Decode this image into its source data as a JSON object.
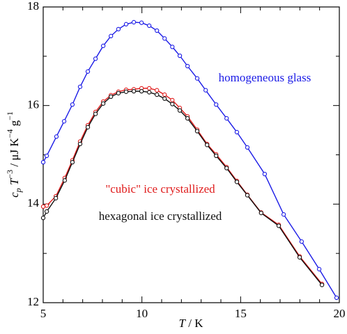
{
  "chart_data": {
    "type": "line",
    "x_label": [
      "T",
      " / K"
    ],
    "y_label": [
      "c",
      "p",
      " T",
      "−3",
      " / μJ K",
      "−4",
      " g",
      "−1"
    ],
    "xlim": [
      5,
      20
    ],
    "ylim": [
      12,
      18
    ],
    "xticks": [
      5,
      10,
      15,
      20
    ],
    "yticks": [
      12,
      14,
      16,
      18
    ],
    "xminor_ticks": [
      6,
      7,
      8,
      9,
      11,
      12,
      13,
      14,
      16,
      17,
      18,
      19
    ],
    "yminor_ticks": [
      13,
      15,
      17
    ],
    "series": [
      {
        "name": "homogeneous glass",
        "color": "#1a1ae6",
        "x": [
          5.0,
          5.18,
          5.67,
          6.06,
          6.48,
          6.87,
          7.26,
          7.65,
          8.04,
          8.43,
          8.81,
          9.2,
          9.59,
          9.98,
          10.37,
          10.76,
          11.15,
          11.54,
          11.92,
          12.31,
          12.8,
          13.23,
          13.76,
          14.29,
          14.81,
          15.34,
          16.22,
          17.18,
          18.09,
          18.98,
          19.86
        ],
        "values": [
          14.85,
          14.98,
          15.37,
          15.68,
          16.02,
          16.38,
          16.69,
          16.95,
          17.21,
          17.41,
          17.55,
          17.65,
          17.69,
          17.68,
          17.62,
          17.52,
          17.36,
          17.19,
          17.01,
          16.8,
          16.55,
          16.31,
          16.02,
          15.74,
          15.46,
          15.15,
          14.61,
          13.79,
          13.24,
          12.68,
          12.1
        ]
      },
      {
        "name": "\"cubic\" ice crystallized",
        "color": "#e01c1c",
        "x": [
          5.0,
          5.18,
          5.64,
          6.09,
          6.48,
          6.87,
          7.26,
          7.65,
          8.04,
          8.43,
          8.81,
          9.2,
          9.59,
          9.98,
          10.37,
          10.76,
          11.15,
          11.54,
          11.92,
          12.31,
          12.8,
          13.3,
          13.76,
          14.29,
          14.81,
          15.34,
          16.04,
          16.93,
          17.99,
          19.12
        ],
        "values": [
          13.95,
          13.97,
          14.16,
          14.53,
          14.89,
          15.27,
          15.6,
          15.87,
          16.08,
          16.21,
          16.28,
          16.32,
          16.33,
          16.35,
          16.35,
          16.31,
          16.22,
          16.11,
          15.95,
          15.78,
          15.51,
          15.22,
          15.01,
          14.75,
          14.47,
          14.19,
          13.83,
          13.58,
          12.94,
          12.38
        ]
      },
      {
        "name": "hexagonal ice crystallized",
        "color": "#111111",
        "x": [
          5.0,
          5.18,
          5.64,
          6.09,
          6.48,
          6.87,
          7.26,
          7.65,
          8.04,
          8.43,
          8.81,
          9.2,
          9.59,
          9.98,
          10.37,
          10.76,
          11.15,
          11.54,
          11.92,
          12.31,
          12.8,
          13.3,
          13.76,
          14.29,
          14.81,
          15.34,
          16.04,
          16.93,
          17.99,
          19.12
        ],
        "values": [
          13.72,
          13.85,
          14.12,
          14.48,
          14.85,
          15.22,
          15.56,
          15.83,
          16.04,
          16.18,
          16.25,
          16.28,
          16.29,
          16.29,
          16.27,
          16.22,
          16.14,
          16.03,
          15.9,
          15.74,
          15.48,
          15.2,
          14.98,
          14.73,
          14.45,
          14.18,
          13.82,
          13.56,
          12.92,
          12.36
        ]
      }
    ]
  }
}
